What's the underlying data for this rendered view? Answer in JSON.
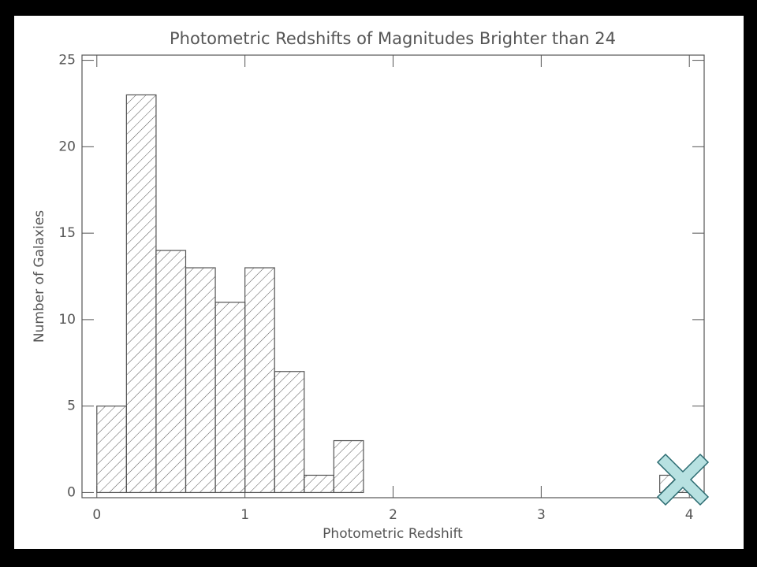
{
  "chart_data": {
    "type": "histogram",
    "title": "Photometric Redshifts of Magnitudes Brighter than 24",
    "x_label": "Photometric Redshift",
    "y_label": "Number of Galaxies",
    "bins": [
      0,
      0.2,
      0.4,
      0.6,
      0.8,
      1.0,
      1.2,
      1.4,
      1.6,
      1.8,
      2.0,
      2.2,
      2.4,
      2.6,
      2.8,
      3.0,
      3.2,
      3.4,
      3.6,
      3.8,
      4.0
    ],
    "values": [
      5,
      23,
      14,
      13,
      11,
      13,
      7,
      1,
      3,
      0,
      0,
      0,
      0,
      0,
      0,
      0,
      0,
      0,
      0,
      1
    ],
    "color": "#555555",
    "xlim": [
      -0.1,
      4.1
    ],
    "xticks": [
      0,
      1,
      2,
      3,
      4
    ],
    "ylim": [
      -0.3,
      25.3
    ],
    "yticks": [
      0,
      5,
      10,
      15,
      20,
      25
    ]
  }
}
